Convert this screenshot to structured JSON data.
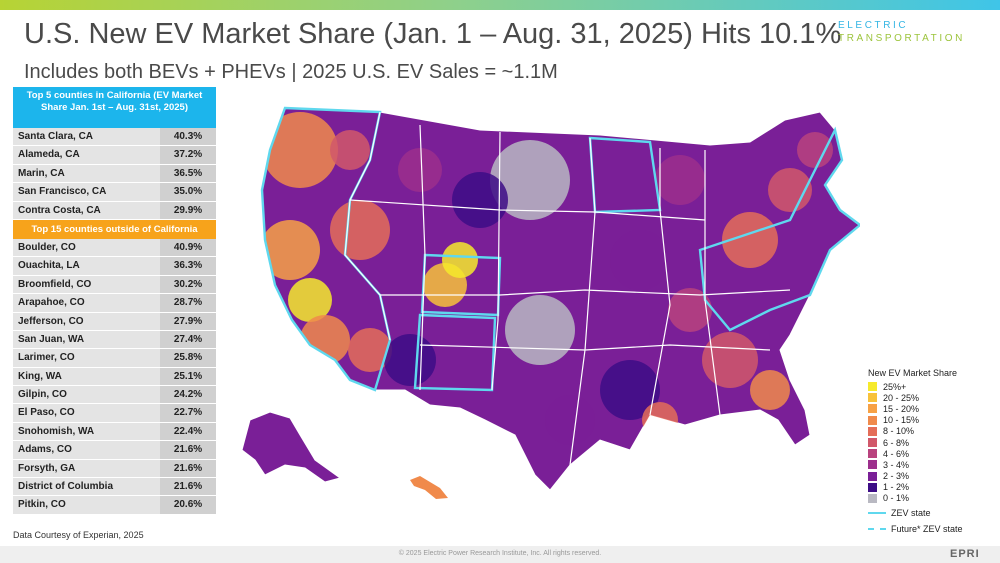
{
  "header": {
    "title": "U.S. New EV Market Share (Jan. 1 – Aug. 31, 2025) Hits 10.1%",
    "subtitle": "Includes both BEVs + PHEVs  | 2025 U.S. EV Sales = ~1.1M"
  },
  "brand": {
    "line1": "ELECTRIC",
    "line2": "TRANSPORTATION",
    "corner": "EPRI"
  },
  "table": {
    "header_ca": "Top 5 counties in California (EV Market Share Jan. 1st – Aug. 31st, 2025)",
    "rows_ca": [
      {
        "county": "Santa Clara, CA",
        "share": "40.3%"
      },
      {
        "county": "Alameda, CA",
        "share": "37.2%"
      },
      {
        "county": "Marin, CA",
        "share": "36.5%"
      },
      {
        "county": "San Francisco, CA",
        "share": "35.0%"
      },
      {
        "county": "Contra Costa, CA",
        "share": "29.9%"
      }
    ],
    "header_other": "Top 15 counties outside of California",
    "rows_other": [
      {
        "county": "Boulder, CO",
        "share": "40.9%"
      },
      {
        "county": "Ouachita, LA",
        "share": "36.3%"
      },
      {
        "county": "Broomfield, CO",
        "share": "30.2%"
      },
      {
        "county": "Arapahoe, CO",
        "share": "28.7%"
      },
      {
        "county": "Jefferson, CO",
        "share": "27.9%"
      },
      {
        "county": "San Juan, WA",
        "share": "27.4%"
      },
      {
        "county": "Larimer, CO",
        "share": "25.8%"
      },
      {
        "county": "King, WA",
        "share": "25.1%"
      },
      {
        "county": "Gilpin, CO",
        "share": "24.2%"
      },
      {
        "county": "El Paso, CO",
        "share": "22.7%"
      },
      {
        "county": "Snohomish, WA",
        "share": "22.4%"
      },
      {
        "county": "Adams, CO",
        "share": "21.6%"
      },
      {
        "county": "Forsyth, GA",
        "share": "21.6%"
      },
      {
        "county": "District of Columbia",
        "share": "21.6%"
      },
      {
        "county": "Pitkin, CO",
        "share": "20.6%"
      }
    ]
  },
  "legend": {
    "title": "New EV Market Share",
    "items": [
      {
        "label": "25%+",
        "color": "#f6ea2c"
      },
      {
        "label": "20 - 25%",
        "color": "#f8c23a"
      },
      {
        "label": "15 - 20%",
        "color": "#f7a145"
      },
      {
        "label": "10 - 15%",
        "color": "#f08a4b"
      },
      {
        "label": "8 - 10%",
        "color": "#e46d58"
      },
      {
        "label": "6 - 8%",
        "color": "#d1586a"
      },
      {
        "label": "4 - 6%",
        "color": "#b9437e"
      },
      {
        "label": "3 - 4%",
        "color": "#9c2f8c"
      },
      {
        "label": "2 - 3%",
        "color": "#7a1f97"
      },
      {
        "label": "1 - 2%",
        "color": "#3d0d86"
      },
      {
        "label": "0 - 1%",
        "color": "#b9b9c2"
      }
    ],
    "zev_label": "ZEV state",
    "future_zev_label": "Future* ZEV state",
    "zev_color": "#5fd8ee"
  },
  "courtesy": "Data Courtesy of Experian, 2025",
  "copyright": "© 2025 Electric Power Research Institute, Inc. All rights reserved."
}
